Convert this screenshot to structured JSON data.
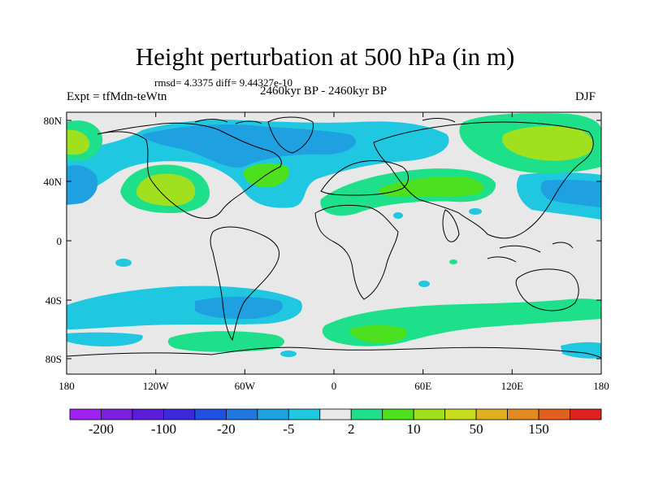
{
  "title": "Height perturbation at 500 hPa (in m)",
  "stats": "rmsd= 4.3375 diff= 9.44327e-10",
  "experiment": "Expt = tfMdn-teWtn",
  "period": "2460kyr BP - 2460kyr BP",
  "season": "DJF",
  "lat_ticks": [
    "80N",
    "40N",
    "0",
    "40S",
    "80S"
  ],
  "lon_ticks": [
    "180",
    "120W",
    "60W",
    "0",
    "60E",
    "120E",
    "180"
  ],
  "colorbar": {
    "labels": [
      "-200",
      "-100",
      "-20",
      "-5",
      "2",
      "10",
      "50",
      "150"
    ],
    "colors": [
      "#a020f0",
      "#7a1ee0",
      "#5a1cd6",
      "#3c2ad8",
      "#1f50e0",
      "#1f78e0",
      "#1fa0e0",
      "#1fc8e0",
      "#e8e8e8",
      "#1fe08a",
      "#4ce01f",
      "#a0e01f",
      "#c8dc1f",
      "#e0b01f",
      "#e08a1f",
      "#e0601f",
      "#e0201f"
    ]
  },
  "map_colors": {
    "background": "#e8e8e8",
    "coast": "#000000"
  }
}
